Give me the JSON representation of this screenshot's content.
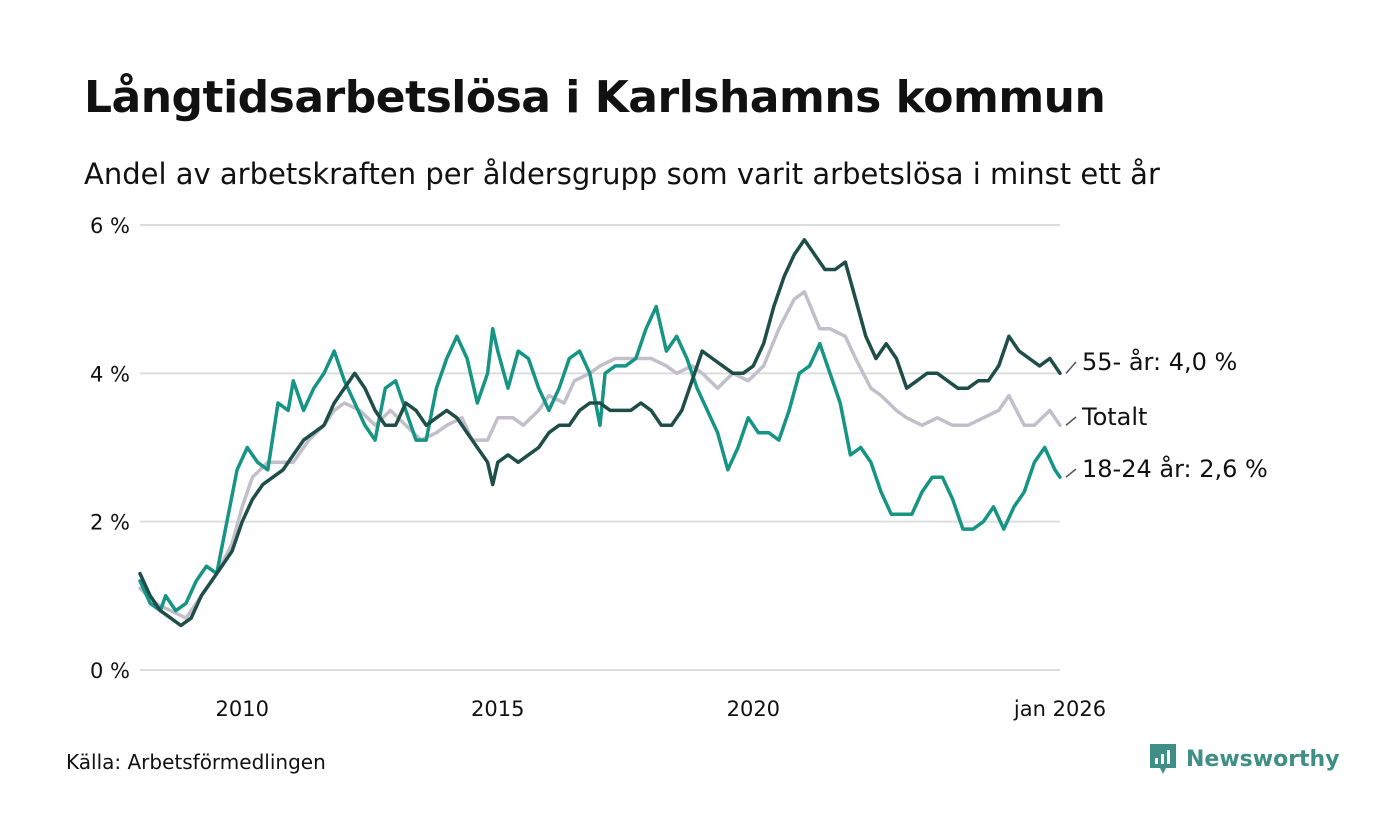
{
  "title": "Långtidsarbetslösa i Karlshamns kommun",
  "subtitle": "Andel av arbetskraften per åldersgrupp som varit arbetslösa i minst ett år",
  "source": "Källa: Arbetsförmedlingen",
  "brand": "Newsworthy",
  "colors": {
    "s55": "#1f4e48",
    "total": "#c2bfcb",
    "s1824": "#169484",
    "grid": "#dddddd",
    "brand": "#3f8f86"
  },
  "chart_data": {
    "type": "line",
    "title": "Långtidsarbetslösa i Karlshamns kommun",
    "subtitle": "Andel av arbetskraften per åldersgrupp som varit arbetslösa i minst ett år",
    "xlabel": "",
    "ylabel": "",
    "xlim": [
      2008.0,
      2026.0
    ],
    "ylim": [
      0,
      6
    ],
    "grid": true,
    "y_ticks": [
      {
        "value": 0,
        "label": "0 %"
      },
      {
        "value": 2,
        "label": "2 %"
      },
      {
        "value": 4,
        "label": "4 %"
      },
      {
        "value": 6,
        "label": "6 %"
      }
    ],
    "x_ticks": [
      {
        "value": 2010.0,
        "label": "2010"
      },
      {
        "value": 2015.0,
        "label": "2015"
      },
      {
        "value": 2020.0,
        "label": "2020"
      },
      {
        "value": 2026.0,
        "label": "jan 2026"
      }
    ],
    "series": [
      {
        "name": "Totalt",
        "label": "Totalt",
        "color": "#c2bfcb",
        "points": [
          [
            2008.0,
            1.1
          ],
          [
            2008.3,
            0.9
          ],
          [
            2008.6,
            0.8
          ],
          [
            2008.9,
            0.7
          ],
          [
            2009.2,
            1.0
          ],
          [
            2009.5,
            1.3
          ],
          [
            2009.8,
            1.7
          ],
          [
            2010.0,
            2.2
          ],
          [
            2010.2,
            2.6
          ],
          [
            2010.5,
            2.8
          ],
          [
            2010.8,
            2.8
          ],
          [
            2011.0,
            2.8
          ],
          [
            2011.3,
            3.1
          ],
          [
            2011.6,
            3.3
          ],
          [
            2011.8,
            3.5
          ],
          [
            2012.0,
            3.6
          ],
          [
            2012.3,
            3.5
          ],
          [
            2012.6,
            3.3
          ],
          [
            2012.9,
            3.5
          ],
          [
            2013.2,
            3.3
          ],
          [
            2013.5,
            3.1
          ],
          [
            2013.8,
            3.2
          ],
          [
            2014.0,
            3.3
          ],
          [
            2014.3,
            3.4
          ],
          [
            2014.5,
            3.1
          ],
          [
            2014.8,
            3.1
          ],
          [
            2015.0,
            3.4
          ],
          [
            2015.3,
            3.4
          ],
          [
            2015.5,
            3.3
          ],
          [
            2015.8,
            3.5
          ],
          [
            2016.0,
            3.7
          ],
          [
            2016.3,
            3.6
          ],
          [
            2016.5,
            3.9
          ],
          [
            2016.8,
            4.0
          ],
          [
            2017.0,
            4.1
          ],
          [
            2017.3,
            4.2
          ],
          [
            2017.5,
            4.2
          ],
          [
            2017.8,
            4.2
          ],
          [
            2018.0,
            4.2
          ],
          [
            2018.3,
            4.1
          ],
          [
            2018.5,
            4.0
          ],
          [
            2018.8,
            4.1
          ],
          [
            2019.0,
            4.0
          ],
          [
            2019.3,
            3.8
          ],
          [
            2019.6,
            4.0
          ],
          [
            2019.9,
            3.9
          ],
          [
            2020.2,
            4.1
          ],
          [
            2020.5,
            4.6
          ],
          [
            2020.8,
            5.0
          ],
          [
            2021.0,
            5.1
          ],
          [
            2021.3,
            4.6
          ],
          [
            2021.5,
            4.6
          ],
          [
            2021.8,
            4.5
          ],
          [
            2022.0,
            4.2
          ],
          [
            2022.3,
            3.8
          ],
          [
            2022.5,
            3.7
          ],
          [
            2022.8,
            3.5
          ],
          [
            2023.0,
            3.4
          ],
          [
            2023.3,
            3.3
          ],
          [
            2023.6,
            3.4
          ],
          [
            2023.9,
            3.3
          ],
          [
            2024.2,
            3.3
          ],
          [
            2024.5,
            3.4
          ],
          [
            2024.8,
            3.5
          ],
          [
            2025.0,
            3.7
          ],
          [
            2025.3,
            3.3
          ],
          [
            2025.5,
            3.3
          ],
          [
            2025.8,
            3.5
          ],
          [
            2026.0,
            3.3
          ]
        ]
      },
      {
        "name": "18-24 år",
        "label": "18-24 år: 2,6 %",
        "color": "#169484",
        "points": [
          [
            2008.0,
            1.2
          ],
          [
            2008.2,
            0.9
          ],
          [
            2008.4,
            0.8
          ],
          [
            2008.5,
            1.0
          ],
          [
            2008.7,
            0.8
          ],
          [
            2008.9,
            0.9
          ],
          [
            2009.1,
            1.2
          ],
          [
            2009.3,
            1.4
          ],
          [
            2009.5,
            1.3
          ],
          [
            2009.7,
            2.0
          ],
          [
            2009.9,
            2.7
          ],
          [
            2010.1,
            3.0
          ],
          [
            2010.3,
            2.8
          ],
          [
            2010.5,
            2.7
          ],
          [
            2010.7,
            3.6
          ],
          [
            2010.9,
            3.5
          ],
          [
            2011.0,
            3.9
          ],
          [
            2011.2,
            3.5
          ],
          [
            2011.4,
            3.8
          ],
          [
            2011.6,
            4.0
          ],
          [
            2011.8,
            4.3
          ],
          [
            2012.0,
            3.9
          ],
          [
            2012.2,
            3.6
          ],
          [
            2012.4,
            3.3
          ],
          [
            2012.6,
            3.1
          ],
          [
            2012.8,
            3.8
          ],
          [
            2013.0,
            3.9
          ],
          [
            2013.2,
            3.5
          ],
          [
            2013.4,
            3.1
          ],
          [
            2013.6,
            3.1
          ],
          [
            2013.8,
            3.8
          ],
          [
            2014.0,
            4.2
          ],
          [
            2014.2,
            4.5
          ],
          [
            2014.4,
            4.2
          ],
          [
            2014.6,
            3.6
          ],
          [
            2014.8,
            4.0
          ],
          [
            2014.9,
            4.6
          ],
          [
            2015.0,
            4.3
          ],
          [
            2015.2,
            3.8
          ],
          [
            2015.4,
            4.3
          ],
          [
            2015.6,
            4.2
          ],
          [
            2015.8,
            3.8
          ],
          [
            2016.0,
            3.5
          ],
          [
            2016.2,
            3.8
          ],
          [
            2016.4,
            4.2
          ],
          [
            2016.6,
            4.3
          ],
          [
            2016.8,
            4.0
          ],
          [
            2017.0,
            3.3
          ],
          [
            2017.1,
            4.0
          ],
          [
            2017.3,
            4.1
          ],
          [
            2017.5,
            4.1
          ],
          [
            2017.7,
            4.2
          ],
          [
            2017.9,
            4.6
          ],
          [
            2018.1,
            4.9
          ],
          [
            2018.3,
            4.3
          ],
          [
            2018.5,
            4.5
          ],
          [
            2018.7,
            4.2
          ],
          [
            2018.9,
            3.8
          ],
          [
            2019.1,
            3.5
          ],
          [
            2019.3,
            3.2
          ],
          [
            2019.5,
            2.7
          ],
          [
            2019.7,
            3.0
          ],
          [
            2019.9,
            3.4
          ],
          [
            2020.1,
            3.2
          ],
          [
            2020.3,
            3.2
          ],
          [
            2020.5,
            3.1
          ],
          [
            2020.7,
            3.5
          ],
          [
            2020.9,
            4.0
          ],
          [
            2021.1,
            4.1
          ],
          [
            2021.3,
            4.4
          ],
          [
            2021.5,
            4.0
          ],
          [
            2021.7,
            3.6
          ],
          [
            2021.9,
            2.9
          ],
          [
            2022.1,
            3.0
          ],
          [
            2022.3,
            2.8
          ],
          [
            2022.5,
            2.4
          ],
          [
            2022.7,
            2.1
          ],
          [
            2022.9,
            2.1
          ],
          [
            2023.1,
            2.1
          ],
          [
            2023.3,
            2.4
          ],
          [
            2023.5,
            2.6
          ],
          [
            2023.7,
            2.6
          ],
          [
            2023.9,
            2.3
          ],
          [
            2024.1,
            1.9
          ],
          [
            2024.3,
            1.9
          ],
          [
            2024.5,
            2.0
          ],
          [
            2024.7,
            2.2
          ],
          [
            2024.9,
            1.9
          ],
          [
            2025.1,
            2.2
          ],
          [
            2025.3,
            2.4
          ],
          [
            2025.5,
            2.8
          ],
          [
            2025.7,
            3.0
          ],
          [
            2025.9,
            2.7
          ],
          [
            2026.0,
            2.6
          ]
        ]
      },
      {
        "name": "55- år",
        "label": "55- år: 4,0 %",
        "color": "#1f4e48",
        "points": [
          [
            2008.0,
            1.3
          ],
          [
            2008.2,
            1.0
          ],
          [
            2008.4,
            0.8
          ],
          [
            2008.6,
            0.7
          ],
          [
            2008.8,
            0.6
          ],
          [
            2009.0,
            0.7
          ],
          [
            2009.2,
            1.0
          ],
          [
            2009.4,
            1.2
          ],
          [
            2009.6,
            1.4
          ],
          [
            2009.8,
            1.6
          ],
          [
            2010.0,
            2.0
          ],
          [
            2010.2,
            2.3
          ],
          [
            2010.4,
            2.5
          ],
          [
            2010.6,
            2.6
          ],
          [
            2010.8,
            2.7
          ],
          [
            2011.0,
            2.9
          ],
          [
            2011.2,
            3.1
          ],
          [
            2011.4,
            3.2
          ],
          [
            2011.6,
            3.3
          ],
          [
            2011.8,
            3.6
          ],
          [
            2012.0,
            3.8
          ],
          [
            2012.2,
            4.0
          ],
          [
            2012.4,
            3.8
          ],
          [
            2012.6,
            3.5
          ],
          [
            2012.8,
            3.3
          ],
          [
            2013.0,
            3.3
          ],
          [
            2013.2,
            3.6
          ],
          [
            2013.4,
            3.5
          ],
          [
            2013.6,
            3.3
          ],
          [
            2013.8,
            3.4
          ],
          [
            2014.0,
            3.5
          ],
          [
            2014.2,
            3.4
          ],
          [
            2014.4,
            3.2
          ],
          [
            2014.6,
            3.0
          ],
          [
            2014.8,
            2.8
          ],
          [
            2014.9,
            2.5
          ],
          [
            2015.0,
            2.8
          ],
          [
            2015.2,
            2.9
          ],
          [
            2015.4,
            2.8
          ],
          [
            2015.6,
            2.9
          ],
          [
            2015.8,
            3.0
          ],
          [
            2016.0,
            3.2
          ],
          [
            2016.2,
            3.3
          ],
          [
            2016.4,
            3.3
          ],
          [
            2016.6,
            3.5
          ],
          [
            2016.8,
            3.6
          ],
          [
            2017.0,
            3.6
          ],
          [
            2017.2,
            3.5
          ],
          [
            2017.4,
            3.5
          ],
          [
            2017.6,
            3.5
          ],
          [
            2017.8,
            3.6
          ],
          [
            2018.0,
            3.5
          ],
          [
            2018.2,
            3.3
          ],
          [
            2018.4,
            3.3
          ],
          [
            2018.6,
            3.5
          ],
          [
            2018.8,
            3.9
          ],
          [
            2019.0,
            4.3
          ],
          [
            2019.2,
            4.2
          ],
          [
            2019.4,
            4.1
          ],
          [
            2019.6,
            4.0
          ],
          [
            2019.8,
            4.0
          ],
          [
            2020.0,
            4.1
          ],
          [
            2020.2,
            4.4
          ],
          [
            2020.4,
            4.9
          ],
          [
            2020.6,
            5.3
          ],
          [
            2020.8,
            5.6
          ],
          [
            2021.0,
            5.8
          ],
          [
            2021.2,
            5.6
          ],
          [
            2021.4,
            5.4
          ],
          [
            2021.6,
            5.4
          ],
          [
            2021.8,
            5.5
          ],
          [
            2022.0,
            5.0
          ],
          [
            2022.2,
            4.5
          ],
          [
            2022.4,
            4.2
          ],
          [
            2022.6,
            4.4
          ],
          [
            2022.8,
            4.2
          ],
          [
            2023.0,
            3.8
          ],
          [
            2023.2,
            3.9
          ],
          [
            2023.4,
            4.0
          ],
          [
            2023.6,
            4.0
          ],
          [
            2023.8,
            3.9
          ],
          [
            2024.0,
            3.8
          ],
          [
            2024.2,
            3.8
          ],
          [
            2024.4,
            3.9
          ],
          [
            2024.6,
            3.9
          ],
          [
            2024.8,
            4.1
          ],
          [
            2025.0,
            4.5
          ],
          [
            2025.2,
            4.3
          ],
          [
            2025.4,
            4.2
          ],
          [
            2025.6,
            4.1
          ],
          [
            2025.8,
            4.2
          ],
          [
            2026.0,
            4.0
          ]
        ]
      }
    ]
  }
}
